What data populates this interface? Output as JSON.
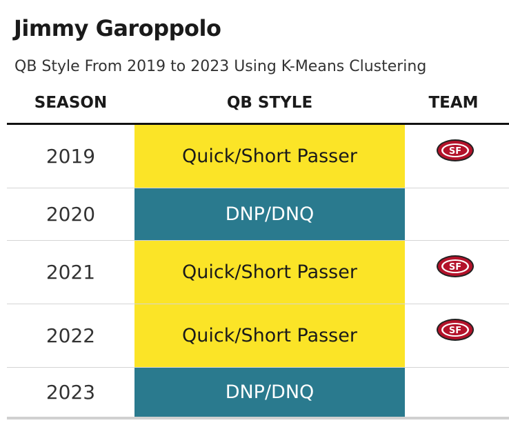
{
  "title": "Jimmy Garoppolo",
  "subtitle": "QB Style From 2019 to 2023 Using K-Means Clustering",
  "columns": {
    "season": "SEASON",
    "qb_style": "QB STYLE",
    "team": "TEAM"
  },
  "rows": [
    {
      "season": "2019",
      "qb_style": "Quick/Short Passer",
      "style_color": "#fbe427",
      "team_logo": "49ers-logo",
      "logo_text": "SF"
    },
    {
      "season": "2020",
      "qb_style": "DNP/DNQ",
      "style_color": "#2a7a8e",
      "team_logo": "",
      "logo_text": ""
    },
    {
      "season": "2021",
      "qb_style": "Quick/Short Passer",
      "style_color": "#fbe427",
      "team_logo": "49ers-logo",
      "logo_text": "SF"
    },
    {
      "season": "2022",
      "qb_style": "Quick/Short Passer",
      "style_color": "#fbe427",
      "team_logo": "49ers-logo",
      "logo_text": "SF"
    },
    {
      "season": "2023",
      "qb_style": "DNP/DNQ",
      "style_color": "#2a7a8e",
      "team_logo": "",
      "logo_text": ""
    }
  ],
  "colors": {
    "quick_short_passer": "#fbe427",
    "dnp_dnq": "#2a7a8e",
    "logo_red": "#b3122a",
    "logo_gold": "#c8a96a"
  }
}
